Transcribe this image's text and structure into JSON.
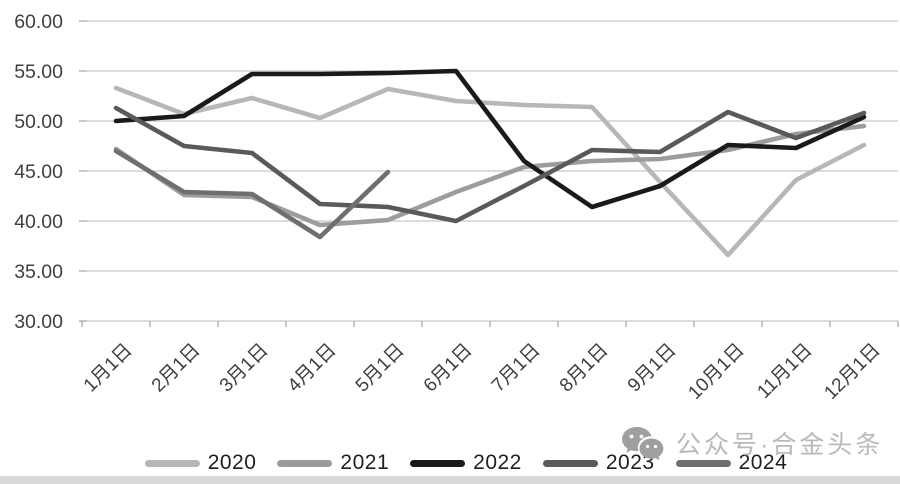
{
  "watermark": {
    "icon": "wechat-icon",
    "text": "公众号·合金头条"
  },
  "legend": {
    "position": "bottom"
  },
  "chart_data": {
    "type": "line",
    "title": "",
    "xlabel": "",
    "ylabel": "",
    "categories": [
      "1月1日",
      "2月1日",
      "3月1日",
      "4月1日",
      "5月1日",
      "6月1日",
      "7月1日",
      "8月1日",
      "9月1日",
      "10月1日",
      "11月1日",
      "12月1日"
    ],
    "y_ticks": [
      "60.00",
      "55.00",
      "50.00",
      "45.00",
      "40.00",
      "35.00",
      "30.00"
    ],
    "ylim": [
      30,
      60
    ],
    "y_step": 5,
    "grid": true,
    "legend_position": "bottom",
    "gridline_color": "#c6c6c6",
    "tick_color": "#ababab",
    "series": [
      {
        "name": "2020",
        "color": "#b7b7b7",
        "values": [
          53.3,
          50.7,
          52.3,
          50.3,
          53.2,
          52.0,
          51.6,
          51.4,
          43.9,
          36.6,
          44.1,
          47.6
        ]
      },
      {
        "name": "2021",
        "color": "#9c9c9c",
        "values": [
          47.2,
          42.6,
          42.4,
          39.6,
          40.1,
          42.9,
          45.4,
          46.0,
          46.2,
          47.1,
          48.7,
          49.5
        ]
      },
      {
        "name": "2022",
        "color": "#1a1a1a",
        "values": [
          50.0,
          50.5,
          54.7,
          54.7,
          54.8,
          55.0,
          46.0,
          41.4,
          43.5,
          47.6,
          47.3,
          50.4
        ]
      },
      {
        "name": "2023",
        "color": "#5a5a5a",
        "values": [
          51.3,
          47.5,
          46.8,
          41.7,
          41.4,
          40.0,
          43.5,
          47.1,
          46.9,
          50.9,
          48.3,
          50.8
        ]
      },
      {
        "name": "2024",
        "color": "#6f6f6f",
        "values": [
          47.0,
          42.9,
          42.7,
          38.4,
          44.9,
          null,
          null,
          null,
          null,
          null,
          null,
          null
        ]
      }
    ]
  }
}
